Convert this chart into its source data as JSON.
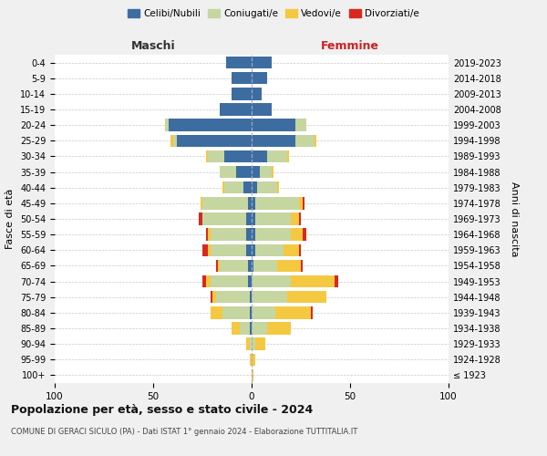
{
  "age_groups": [
    "100+",
    "95-99",
    "90-94",
    "85-89",
    "80-84",
    "75-79",
    "70-74",
    "65-69",
    "60-64",
    "55-59",
    "50-54",
    "45-49",
    "40-44",
    "35-39",
    "30-34",
    "25-29",
    "20-24",
    "15-19",
    "10-14",
    "5-9",
    "0-4"
  ],
  "birth_years": [
    "≤ 1923",
    "1924-1928",
    "1929-1933",
    "1934-1938",
    "1939-1943",
    "1944-1948",
    "1949-1953",
    "1954-1958",
    "1959-1963",
    "1964-1968",
    "1969-1973",
    "1974-1978",
    "1979-1983",
    "1984-1988",
    "1989-1993",
    "1994-1998",
    "1999-2003",
    "2004-2008",
    "2009-2013",
    "2014-2018",
    "2019-2023"
  ],
  "male_celibi": [
    0,
    0,
    0,
    1,
    1,
    1,
    2,
    2,
    3,
    3,
    3,
    2,
    4,
    8,
    14,
    38,
    42,
    16,
    10,
    10,
    13
  ],
  "male_coniugati": [
    0,
    0,
    1,
    5,
    14,
    17,
    19,
    14,
    18,
    18,
    22,
    23,
    10,
    8,
    8,
    2,
    2,
    0,
    0,
    0,
    0
  ],
  "male_vedovi": [
    0,
    1,
    2,
    4,
    6,
    2,
    2,
    1,
    1,
    1,
    0,
    1,
    1,
    0,
    1,
    1,
    0,
    0,
    0,
    0,
    0
  ],
  "male_divorziati": [
    0,
    0,
    0,
    0,
    0,
    1,
    2,
    1,
    3,
    1,
    2,
    0,
    0,
    0,
    0,
    0,
    0,
    0,
    0,
    0,
    0
  ],
  "fem_nubili": [
    0,
    0,
    0,
    0,
    0,
    0,
    0,
    1,
    2,
    2,
    2,
    2,
    3,
    4,
    8,
    22,
    22,
    10,
    5,
    8,
    10
  ],
  "fem_coniugate": [
    0,
    0,
    2,
    8,
    12,
    18,
    20,
    12,
    14,
    18,
    18,
    22,
    10,
    6,
    10,
    10,
    6,
    0,
    0,
    0,
    0
  ],
  "fem_vedove": [
    1,
    2,
    5,
    12,
    18,
    20,
    22,
    12,
    8,
    6,
    4,
    2,
    1,
    1,
    1,
    1,
    0,
    0,
    0,
    0,
    0
  ],
  "fem_divorziate": [
    0,
    0,
    0,
    0,
    1,
    0,
    2,
    1,
    1,
    2,
    1,
    1,
    0,
    0,
    0,
    0,
    0,
    0,
    0,
    0,
    0
  ],
  "colors": {
    "celibi_nubili": "#3d6da0",
    "coniugati": "#c5d6a0",
    "vedovi": "#f5c842",
    "divorziati": "#d9281e"
  },
  "xlim": 100,
  "title": "Popolazione per età, sesso e stato civile - 2024",
  "subtitle": "COMUNE DI GERACI SICULO (PA) - Dati ISTAT 1° gennaio 2024 - Elaborazione TUTTITALIA.IT",
  "ylabel_left": "Fasce di età",
  "ylabel_right": "Anni di nascita",
  "xlabel_left": "Maschi",
  "xlabel_right": "Femmine",
  "bg_color": "#f0f0f0",
  "plot_bg_color": "#ffffff"
}
